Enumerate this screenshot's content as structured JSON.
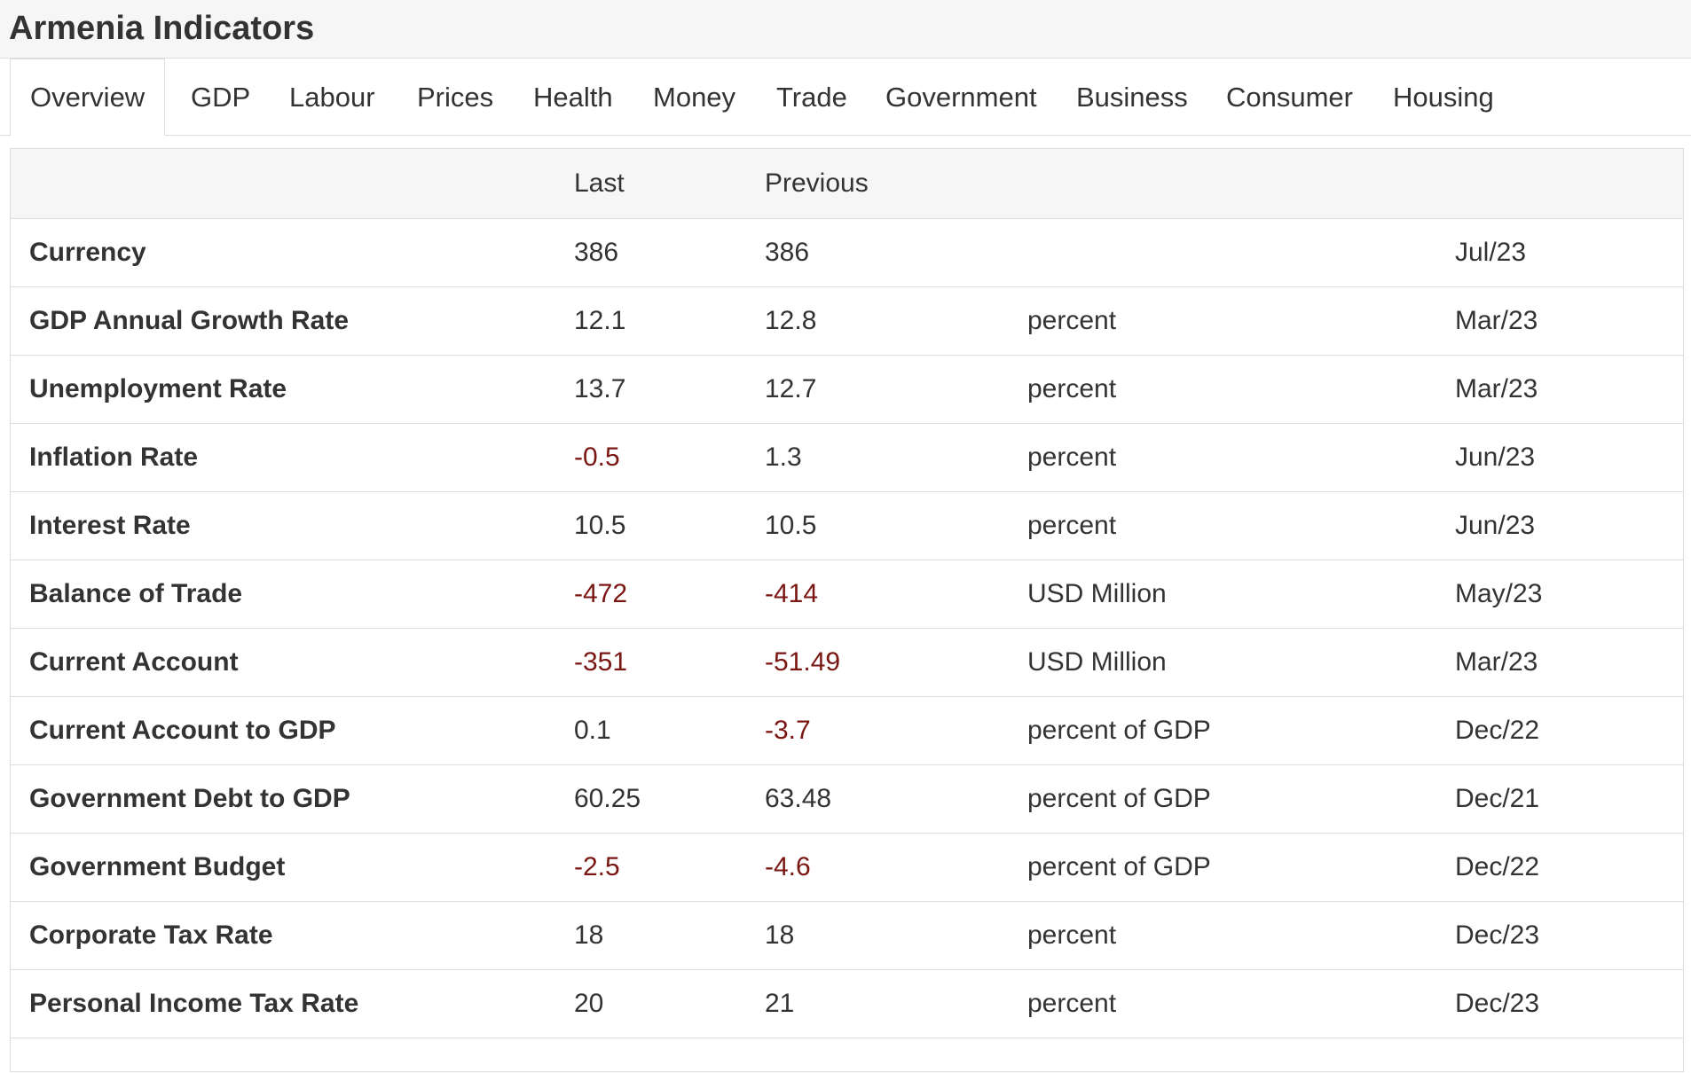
{
  "title": "Armenia Indicators",
  "tabs": [
    {
      "label": "Overview",
      "active": true
    },
    {
      "label": "GDP",
      "active": false
    },
    {
      "label": "Labour",
      "active": false
    },
    {
      "label": "Prices",
      "active": false
    },
    {
      "label": "Health",
      "active": false
    },
    {
      "label": "Money",
      "active": false
    },
    {
      "label": "Trade",
      "active": false
    },
    {
      "label": "Government",
      "active": false
    },
    {
      "label": "Business",
      "active": false
    },
    {
      "label": "Consumer",
      "active": false
    },
    {
      "label": "Housing",
      "active": false
    }
  ],
  "table": {
    "columns": {
      "name": "",
      "last": "Last",
      "previous": "Previous",
      "unit": "",
      "date": ""
    },
    "rows": [
      {
        "name": "Currency",
        "last": "386",
        "previous": "386",
        "unit": "",
        "date": "Jul/23"
      },
      {
        "name": "GDP Annual Growth Rate",
        "last": "12.1",
        "previous": "12.8",
        "unit": "percent",
        "date": "Mar/23"
      },
      {
        "name": "Unemployment Rate",
        "last": "13.7",
        "previous": "12.7",
        "unit": "percent",
        "date": "Mar/23"
      },
      {
        "name": "Inflation Rate",
        "last": "-0.5",
        "previous": "1.3",
        "unit": "percent",
        "date": "Jun/23"
      },
      {
        "name": "Interest Rate",
        "last": "10.5",
        "previous": "10.5",
        "unit": "percent",
        "date": "Jun/23"
      },
      {
        "name": "Balance of Trade",
        "last": "-472",
        "previous": "-414",
        "unit": "USD Million",
        "date": "May/23"
      },
      {
        "name": "Current Account",
        "last": "-351",
        "previous": "-51.49",
        "unit": "USD Million",
        "date": "Mar/23"
      },
      {
        "name": "Current Account to GDP",
        "last": "0.1",
        "previous": "-3.7",
        "unit": "percent of GDP",
        "date": "Dec/22"
      },
      {
        "name": "Government Debt to GDP",
        "last": "60.25",
        "previous": "63.48",
        "unit": "percent of GDP",
        "date": "Dec/21"
      },
      {
        "name": "Government Budget",
        "last": "-2.5",
        "previous": "-4.6",
        "unit": "percent of GDP",
        "date": "Dec/22"
      },
      {
        "name": "Corporate Tax Rate",
        "last": "18",
        "previous": "18",
        "unit": "percent",
        "date": "Dec/23"
      },
      {
        "name": "Personal Income Tax Rate",
        "last": "20",
        "previous": "21",
        "unit": "percent",
        "date": "Dec/23"
      }
    ]
  },
  "colors": {
    "negative": "#7a1612",
    "text": "#333333",
    "header_bg": "#f6f6f6",
    "border": "#dddddd"
  }
}
